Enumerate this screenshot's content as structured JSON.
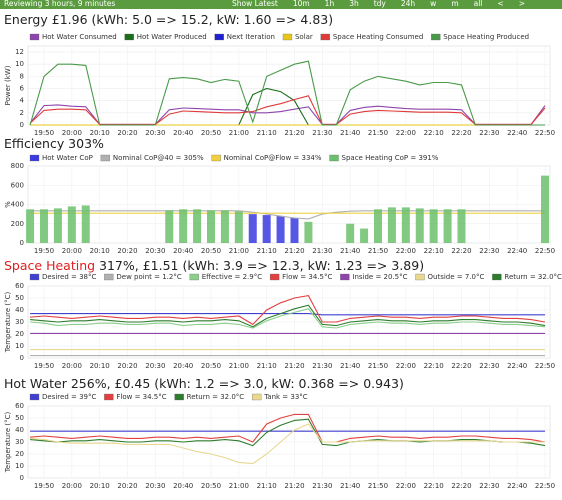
{
  "toolbar": {
    "status": "Reviewing 3 hours, 9 minutes",
    "buttons": [
      "Show Latest",
      "10m",
      "1h",
      "3h",
      "tdy",
      "24h",
      "w",
      "m",
      "all",
      "<",
      ">"
    ]
  },
  "chart_data": [
    {
      "type": "line",
      "title": "Energy £1.96 (kWh: 5.0 => 15.2, kW: 1.60 => 4.83)",
      "y_label": "Power (kW)",
      "x": [
        null,
        "19:50",
        null,
        "20:00",
        null,
        "20:10",
        null,
        "20:20",
        null,
        "20:30",
        null,
        "20:40",
        null,
        "20:50",
        null,
        "21:00",
        null,
        "21:10",
        null,
        "21:20",
        null,
        "21:30",
        null,
        "21:40",
        null,
        "21:50",
        null,
        "22:00",
        null,
        "22:10",
        null,
        "22:20",
        null,
        "22:30",
        null,
        "22:40",
        null,
        "22:50"
      ],
      "ylim": [
        0,
        13
      ],
      "yticks": [
        0,
        2,
        4,
        6,
        8,
        10,
        12
      ],
      "grid": true,
      "series": [
        {
          "name": "Hot Water Consumed",
          "color": "#8e44ad",
          "values": [
            0.3,
            3.2,
            3.3,
            3.1,
            3.0,
            0.1,
            0.1,
            0.1,
            0.1,
            0.1,
            2.5,
            2.8,
            2.7,
            2.6,
            2.5,
            2.5,
            2.0,
            2.0,
            2.2,
            2.6,
            3.0,
            0.1,
            0.1,
            2.4,
            2.9,
            3.1,
            2.9,
            2.7,
            2.6,
            2.6,
            2.6,
            2.5,
            0.1,
            0.1,
            0.1,
            0.1,
            0.1,
            3.2
          ]
        },
        {
          "name": "Hot Water Produced",
          "color": "#1a6e1a",
          "values": [
            0,
            0,
            0,
            0,
            0,
            0,
            0,
            0,
            0,
            0,
            0,
            0,
            0,
            0,
            0,
            0,
            5,
            6,
            5.5,
            4,
            0,
            0,
            0,
            0,
            0,
            0,
            0,
            0,
            0,
            0,
            0,
            0,
            0,
            0,
            0,
            0,
            0,
            0
          ]
        },
        {
          "name": "Next Iteration",
          "color": "#2020d0",
          "values": [
            0,
            0,
            0,
            0,
            0,
            0,
            0,
            0,
            0,
            0,
            0,
            0,
            0,
            0,
            0,
            0,
            0,
            0,
            0,
            0,
            0,
            0,
            0,
            0,
            0,
            0,
            0,
            0,
            0,
            0,
            0,
            0,
            0,
            0,
            0,
            0,
            0,
            0
          ]
        },
        {
          "name": "Solar",
          "color": "#e6c619",
          "values": [
            0,
            0,
            0,
            0,
            0,
            0,
            0,
            0,
            0,
            0,
            0,
            0,
            0,
            0,
            0,
            0,
            0,
            0,
            0,
            0,
            0,
            0,
            0,
            0,
            0,
            0,
            0,
            0,
            0,
            0,
            0,
            0,
            0,
            0,
            0,
            0,
            0,
            0
          ]
        },
        {
          "name": "Space Heating Consumed",
          "color": "#e03a3a",
          "values": [
            0.3,
            2.4,
            2.6,
            2.6,
            2.5,
            0.1,
            0.1,
            0.1,
            0.1,
            0.1,
            1.8,
            2.3,
            2.2,
            2.1,
            2.0,
            2.0,
            2.2,
            3.0,
            3.5,
            4.2,
            4.8,
            0.1,
            0.1,
            1.8,
            2.2,
            2.4,
            2.3,
            2.2,
            2.1,
            2.1,
            2.1,
            2.0,
            0.1,
            0.1,
            0.1,
            0.1,
            0.1,
            2.8
          ]
        },
        {
          "name": "Space Heating Produced",
          "color": "#4a9a4a",
          "values": [
            0,
            8,
            10,
            10,
            9.8,
            0,
            0,
            0,
            0,
            0,
            7.6,
            7.8,
            7.6,
            7,
            7.5,
            7.2,
            0.5,
            8,
            9,
            10,
            10.5,
            0,
            0,
            5.8,
            7.2,
            8,
            7.6,
            7.2,
            6.6,
            7,
            7,
            6.6,
            0,
            0,
            0,
            0,
            0,
            0
          ]
        }
      ]
    },
    {
      "type": "line",
      "title": "Efficiency 303%",
      "y_label": "%",
      "x": [
        null,
        "19:50",
        null,
        "20:00",
        null,
        "20:10",
        null,
        "20:20",
        null,
        "20:30",
        null,
        "20:40",
        null,
        "20:50",
        null,
        "21:00",
        null,
        "21:10",
        null,
        "21:20",
        null,
        "21:30",
        null,
        "21:40",
        null,
        "21:50",
        null,
        "22:00",
        null,
        "22:10",
        null,
        "22:20",
        null,
        "22:30",
        null,
        "22:40",
        null,
        "22:50"
      ],
      "ylim": [
        0,
        800
      ],
      "yticks": [
        0,
        200,
        400,
        600,
        800
      ],
      "grid": true,
      "series": [
        {
          "name": "Hot Water CoP",
          "type": "bar",
          "color": "#3a3ae0",
          "values": [
            null,
            null,
            null,
            null,
            null,
            null,
            null,
            null,
            null,
            null,
            null,
            null,
            null,
            null,
            null,
            null,
            300,
            290,
            280,
            260,
            null,
            null,
            null,
            null,
            null,
            null,
            null,
            null,
            null,
            null,
            null,
            null,
            null,
            null,
            null,
            null,
            null,
            null
          ]
        },
        {
          "name": "Nominal CoP@40 = 305%",
          "color": "#b0b0b0",
          "values": [
            335,
            335,
            335,
            335,
            335,
            335,
            335,
            335,
            335,
            335,
            335,
            335,
            335,
            335,
            335,
            335,
            320,
            300,
            280,
            260,
            250,
            300,
            320,
            330,
            335,
            335,
            335,
            335,
            335,
            335,
            335,
            335,
            335,
            335,
            335,
            335,
            335,
            335
          ]
        },
        {
          "name": "Nominal CoP@Flow = 334%",
          "color": "#f0d040",
          "values": [
            310,
            310,
            310,
            310,
            310,
            310,
            310,
            310,
            310,
            310,
            310,
            310,
            310,
            310,
            310,
            310,
            310,
            310,
            310,
            310,
            310,
            310,
            310,
            310,
            310,
            310,
            310,
            310,
            310,
            310,
            310,
            310,
            310,
            310,
            310,
            310,
            310,
            310
          ]
        },
        {
          "name": "Space Heating CoP = 391%",
          "type": "bar",
          "color": "#6cbf6c",
          "values": [
            350,
            350,
            360,
            380,
            390,
            null,
            null,
            null,
            null,
            null,
            340,
            350,
            350,
            340,
            340,
            330,
            null,
            null,
            null,
            null,
            220,
            null,
            null,
            200,
            150,
            350,
            370,
            370,
            360,
            350,
            350,
            350,
            null,
            null,
            null,
            null,
            null,
            700
          ]
        }
      ]
    },
    {
      "type": "line",
      "title_highlight": "Space Heating",
      "title": "317%, £1.51 (kWh: 3.9 => 12.3, kW: 1.23 => 3.89)",
      "y_label": "Temperature (°C)",
      "x": [
        null,
        "19:50",
        null,
        "20:00",
        null,
        "20:10",
        null,
        "20:20",
        null,
        "20:30",
        null,
        "20:40",
        null,
        "20:50",
        null,
        "21:00",
        null,
        "21:10",
        null,
        "21:20",
        null,
        "21:30",
        null,
        "21:40",
        null,
        "21:50",
        null,
        "22:00",
        null,
        "22:10",
        null,
        "22:20",
        null,
        "22:30",
        null,
        "22:40",
        null,
        "22:50"
      ],
      "ylim": [
        0,
        60
      ],
      "yticks": [
        0,
        10,
        20,
        30,
        40,
        50,
        60
      ],
      "grid": true,
      "series": [
        {
          "name": "Desired = 38°C",
          "color": "#4040d0",
          "values": [
            37,
            37,
            37,
            37,
            37,
            37,
            37,
            37,
            37,
            37,
            37,
            37,
            37,
            37,
            37,
            37,
            37,
            37,
            37,
            37,
            37,
            36,
            36,
            36,
            36,
            36,
            36,
            36,
            36,
            36,
            36,
            36,
            36,
            36,
            36,
            36,
            36,
            36
          ]
        },
        {
          "name": "Dew point = 1.2°C",
          "color": "#b0b0b0",
          "values": [
            2,
            2,
            2,
            2,
            2,
            2,
            2,
            2,
            2,
            2,
            2,
            2,
            2,
            2,
            2,
            2,
            2,
            2,
            2,
            2,
            2,
            2,
            2,
            2,
            2,
            2,
            2,
            2,
            2,
            2,
            2,
            2,
            2,
            2,
            2,
            2,
            2,
            2
          ]
        },
        {
          "name": "Effective = 2.9°C",
          "color": "#8ccf8c",
          "values": [
            30,
            29,
            27,
            28,
            28,
            29,
            29,
            28,
            28,
            29,
            29,
            27,
            28,
            28,
            29,
            28,
            25,
            31,
            35,
            38,
            41,
            26,
            25,
            28,
            29,
            30,
            29,
            29,
            28,
            29,
            29,
            30,
            30,
            29,
            28,
            28,
            27,
            26
          ]
        },
        {
          "name": "Flow = 34.5°C",
          "color": "#e04040",
          "values": [
            34,
            35,
            34,
            33,
            34,
            35,
            34,
            33,
            33,
            34,
            34,
            33,
            34,
            33,
            34,
            35,
            28,
            40,
            46,
            50,
            52,
            30,
            30,
            33,
            34,
            35,
            34,
            34,
            33,
            34,
            34,
            35,
            35,
            34,
            33,
            33,
            32,
            30
          ]
        },
        {
          "name": "Inside = 20.5°C",
          "color": "#8e44ad",
          "values": [
            20.5,
            20.5,
            20.5,
            20.5,
            20.5,
            20.5,
            20.5,
            20.5,
            20.5,
            20.5,
            20.5,
            20.5,
            20.5,
            20.5,
            20.5,
            20.5,
            20.5,
            20.5,
            20.5,
            20.5,
            20.5,
            20.5,
            20.5,
            20.5,
            20.5,
            20.5,
            20.5,
            20.5,
            20.5,
            20.5,
            20.5,
            20.5,
            20.5,
            20.5,
            20.5,
            20.5,
            20.5,
            20.5
          ]
        },
        {
          "name": "Outside = 7.0°C",
          "color": "#e8d890",
          "values": [
            7,
            7,
            7,
            7,
            7,
            7,
            7,
            7,
            7,
            7,
            7,
            7,
            7,
            7,
            7,
            7,
            7,
            7,
            7,
            7,
            7,
            7,
            7,
            7,
            7,
            7,
            7,
            7,
            7,
            7,
            7,
            7,
            7,
            7,
            7,
            7,
            7,
            7
          ]
        },
        {
          "name": "Return = 32.0°C",
          "color": "#2e7d2e",
          "values": [
            32,
            31,
            30,
            31,
            31,
            32,
            31,
            30,
            30,
            31,
            31,
            30,
            31,
            31,
            32,
            31,
            26,
            33,
            37,
            41,
            44,
            28,
            27,
            30,
            31,
            32,
            31,
            31,
            30,
            31,
            31,
            32,
            32,
            31,
            30,
            30,
            29,
            27
          ]
        }
      ]
    },
    {
      "type": "line",
      "title": "Hot Water 256%, £0.45 (kWh: 1.2 => 3.0, kW: 0.368 => 0.943)",
      "y_label": "Temperature (°C)",
      "x": [
        null,
        "19:50",
        null,
        "20:00",
        null,
        "20:10",
        null,
        "20:20",
        null,
        "20:30",
        null,
        "20:40",
        null,
        "20:50",
        null,
        "21:00",
        null,
        "21:10",
        null,
        "21:20",
        null,
        "21:30",
        null,
        "21:40",
        null,
        "21:50",
        null,
        "22:00",
        null,
        "22:10",
        null,
        "22:20",
        null,
        "22:30",
        null,
        "22:40",
        null,
        "22:50"
      ],
      "ylim": [
        0,
        60
      ],
      "yticks": [
        0,
        10,
        20,
        30,
        40,
        50,
        60
      ],
      "grid": true,
      "series": [
        {
          "name": "Desired = 39°C",
          "color": "#4040d0",
          "values": [
            39,
            39,
            39,
            39,
            39,
            39,
            39,
            39,
            39,
            39,
            39,
            39,
            39,
            39,
            39,
            39,
            39,
            39,
            39,
            39,
            39,
            39,
            39,
            39,
            39,
            39,
            39,
            39,
            39,
            39,
            39,
            39,
            39,
            39,
            39,
            39,
            39,
            39
          ]
        },
        {
          "name": "Flow = 34.5°C",
          "color": "#e04040",
          "values": [
            34,
            35,
            34,
            33,
            34,
            35,
            34,
            33,
            33,
            34,
            34,
            33,
            34,
            33,
            34,
            35,
            30,
            45,
            50,
            53,
            53,
            30,
            30,
            33,
            34,
            35,
            34,
            34,
            33,
            34,
            34,
            35,
            35,
            34,
            33,
            33,
            32,
            30
          ]
        },
        {
          "name": "Return = 32.0°C",
          "color": "#2e7d2e",
          "values": [
            32,
            31,
            30,
            31,
            31,
            32,
            31,
            30,
            30,
            31,
            31,
            30,
            31,
            31,
            32,
            31,
            27,
            38,
            44,
            48,
            49,
            28,
            27,
            30,
            31,
            32,
            31,
            31,
            30,
            31,
            31,
            32,
            32,
            31,
            30,
            30,
            29,
            27
          ]
        },
        {
          "name": "Tank = 33°C",
          "color": "#e8d890",
          "values": [
            33,
            32,
            30,
            29,
            29,
            29,
            29,
            28,
            28,
            28,
            28,
            25,
            22,
            20,
            17,
            13,
            12,
            20,
            30,
            40,
            45,
            30,
            30,
            30,
            31,
            31,
            31,
            31,
            31,
            31,
            31,
            31,
            31,
            31,
            30,
            30,
            30,
            30
          ]
        }
      ]
    }
  ]
}
